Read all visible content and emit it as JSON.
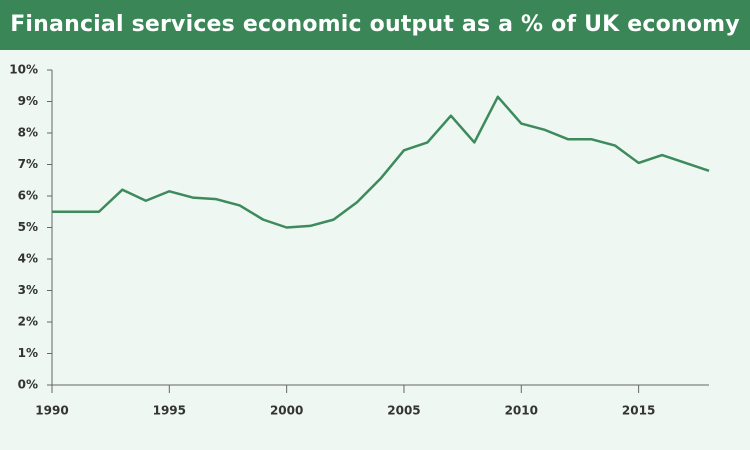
{
  "chart_data": {
    "type": "line",
    "title": "Financial services economic output as a % of UK economy",
    "x": [
      1990,
      1991,
      1992,
      1993,
      1994,
      1995,
      1996,
      1997,
      1998,
      1999,
      2000,
      2001,
      2002,
      2003,
      2004,
      2005,
      2006,
      2007,
      2008,
      2009,
      2010,
      2011,
      2012,
      2013,
      2014,
      2015,
      2016,
      2017,
      2018
    ],
    "series": [
      {
        "color": "#3d8a5c",
        "values": [
          5.5,
          5.5,
          5.5,
          6.2,
          5.85,
          6.15,
          5.95,
          5.9,
          5.7,
          5.25,
          5.0,
          5.05,
          5.25,
          5.8,
          6.55,
          7.45,
          7.7,
          8.55,
          7.7,
          9.15,
          8.3,
          8.1,
          7.8,
          7.8,
          7.6,
          7.05,
          7.3,
          7.05,
          6.8
        ]
      }
    ],
    "xlim": [
      1990,
      2018
    ],
    "xticks": [
      1990,
      1995,
      2000,
      2005,
      2010,
      2015
    ],
    "ylim": [
      0,
      10
    ],
    "yticks": [
      {
        "value": 0,
        "label": "0%"
      },
      {
        "value": 1,
        "label": "1%"
      },
      {
        "value": 2,
        "label": "2%"
      },
      {
        "value": 3,
        "label": "3%"
      },
      {
        "value": 4,
        "label": "4%"
      },
      {
        "value": 5,
        "label": "5%"
      },
      {
        "value": 6,
        "label": "6%"
      },
      {
        "value": 7,
        "label": "7%"
      },
      {
        "value": 8,
        "label": "8%"
      },
      {
        "value": 9,
        "label": "9%"
      },
      {
        "value": 10,
        "label": "10%"
      }
    ],
    "grid": false
  }
}
